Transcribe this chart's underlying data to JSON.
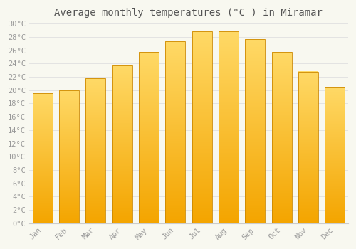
{
  "title": "Average monthly temperatures (°C ) in Miramar",
  "months": [
    "Jan",
    "Feb",
    "Mar",
    "Apr",
    "May",
    "Jun",
    "Jul",
    "Aug",
    "Sep",
    "Oct",
    "Nov",
    "Dec"
  ],
  "values": [
    19.5,
    20.0,
    21.8,
    23.7,
    25.7,
    27.3,
    28.8,
    28.8,
    27.7,
    25.7,
    22.8,
    20.5
  ],
  "ylim": [
    0,
    30
  ],
  "yticks": [
    0,
    2,
    4,
    6,
    8,
    10,
    12,
    14,
    16,
    18,
    20,
    22,
    24,
    26,
    28,
    30
  ],
  "bar_color_top": "#FFD966",
  "bar_color_bottom": "#F4A500",
  "bar_edge_color": "#CC8800",
  "background_color": "#F8F8F0",
  "plot_bg_color": "#F8F8F0",
  "grid_color": "#E0E0E0",
  "title_fontsize": 10,
  "tick_fontsize": 7.5,
  "tick_color": "#999999",
  "font_family": "monospace",
  "bar_width": 0.75
}
